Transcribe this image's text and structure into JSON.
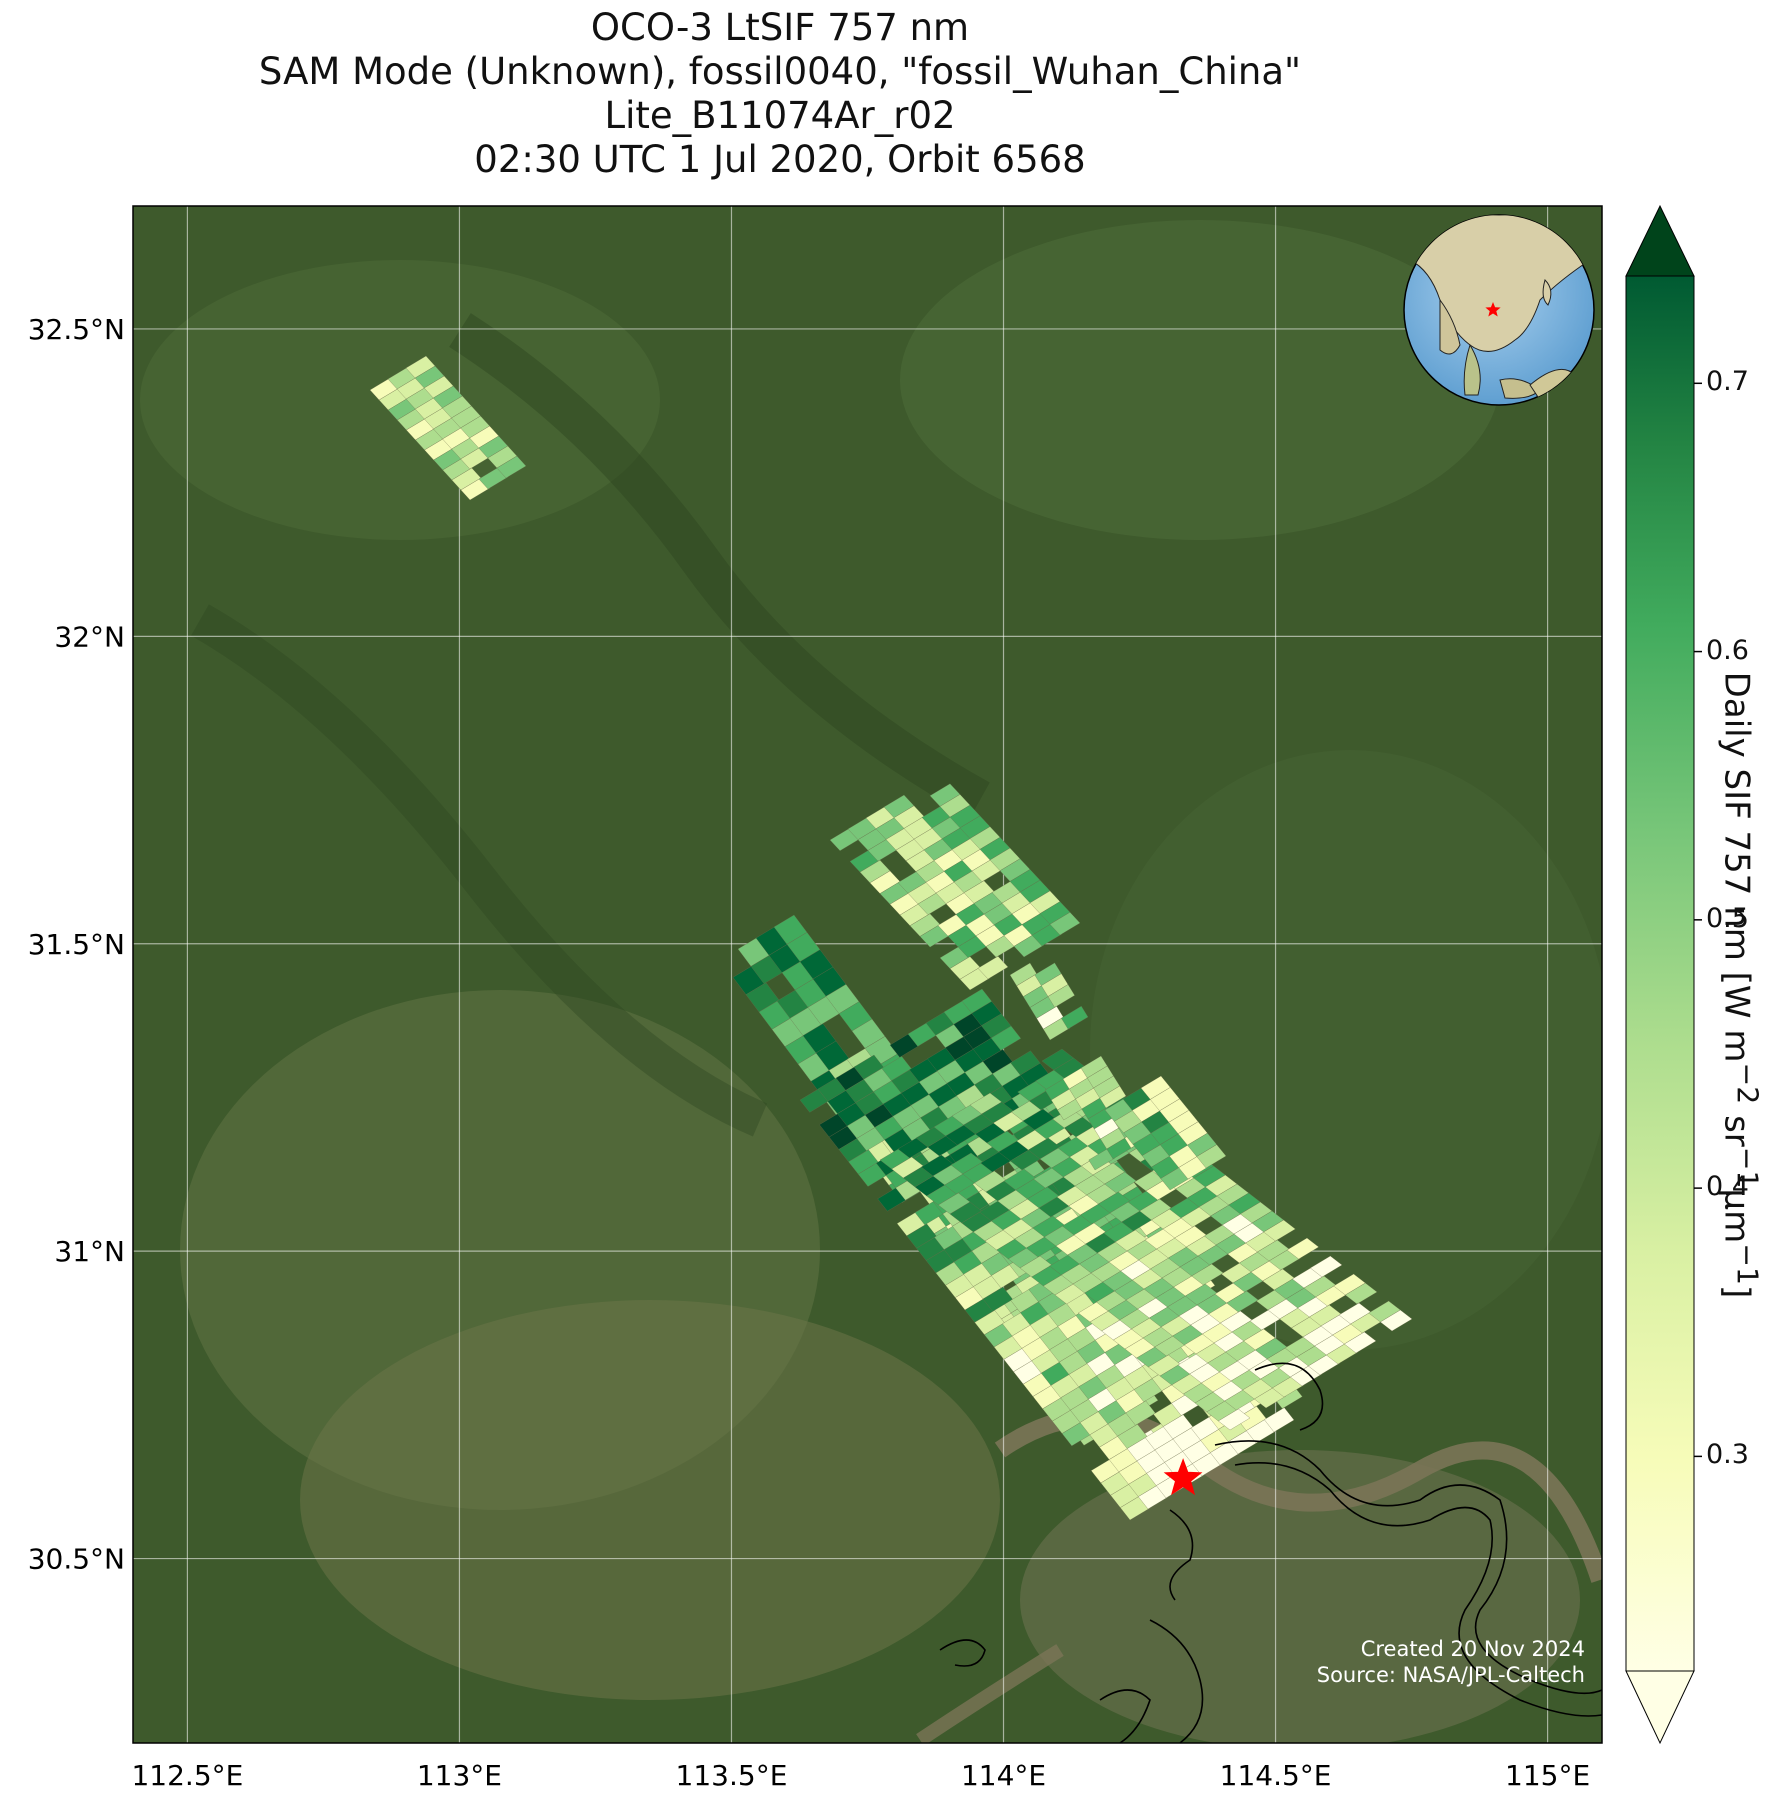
{
  "title": {
    "line1": "OCO-3 LtSIF 757 nm",
    "line2": "SAM Mode (Unknown), fossil0040, \"fossil_Wuhan_China\"",
    "line3": "Lite_B11074Ar_r02",
    "line4": "02:30 UTC 1 Jul 2020, Orbit 6568"
  },
  "axes": {
    "lon_ticks": [
      "112.5°E",
      "113°E",
      "113.5°E",
      "114°E",
      "114.5°E",
      "115°E"
    ],
    "lat_ticks": [
      "32.5°N",
      "32°N",
      "31.5°N",
      "31°N",
      "30.5°N"
    ]
  },
  "map": {
    "lon_range": [
      112.4,
      115.1
    ],
    "lat_range": [
      30.2,
      32.7
    ],
    "target_marker": {
      "lon": 114.33,
      "lat": 30.63,
      "color": "#ff0000"
    },
    "basemap": "satellite imagery"
  },
  "colorbar": {
    "label": "Daily SIF 757 nm [W m",
    "label_full": "Daily SIF 757 nm [W m⁻² sr⁻¹µm⁻¹]",
    "ticks": [
      "0.3",
      "0.4",
      "0.5",
      "0.6",
      "0.7"
    ],
    "range": [
      0.22,
      0.74
    ],
    "colormap": "YlGn",
    "extend": "both"
  },
  "credits": {
    "created": "Created 20 Nov 2024",
    "source": "Source: NASA/JPL-Caltech"
  },
  "inset": {
    "description_icon": "globe-icon",
    "marker_color": "#ff0000"
  }
}
